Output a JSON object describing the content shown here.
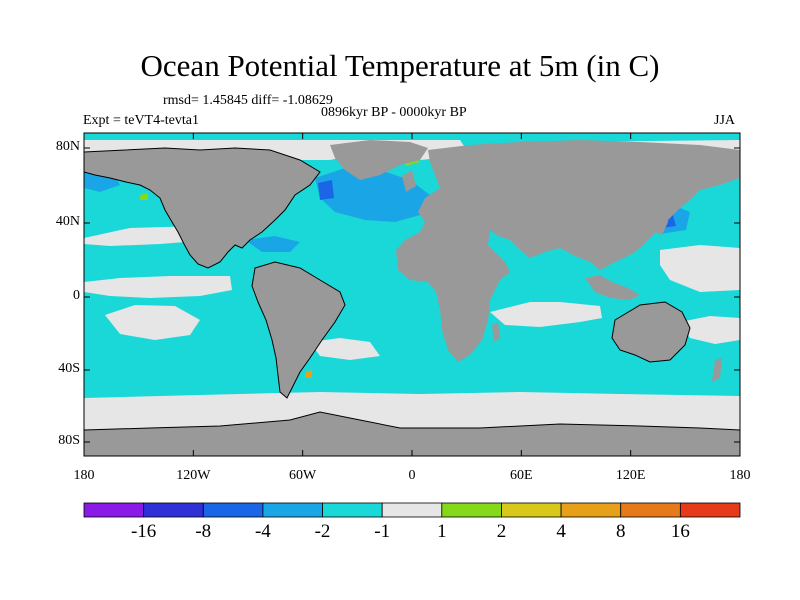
{
  "title": "Ocean Potential Temperature at 5m (in C)",
  "stats": "rmsd= 1.45845 diff= -1.08629",
  "period": "0896kyr BP - 0000kyr BP",
  "experiment": "Expt = teVT4-tevta1",
  "season": "JJA",
  "map": {
    "lat_ticks": [
      "80N",
      "40N",
      "0",
      "40S",
      "80S"
    ],
    "lon_ticks": [
      "180",
      "120W",
      "60W",
      "0",
      "60E",
      "120E",
      "180"
    ],
    "land_color": "#999999",
    "ocean_base_color": "#1ad8d8",
    "near_zero_color": "#e6e6e6"
  },
  "colorbar": {
    "colors": [
      "#8a1ae6",
      "#3030d8",
      "#1a66e6",
      "#1aa6e6",
      "#1ad8d8",
      "#e6e6e6",
      "#86d81a",
      "#d8c81a",
      "#e6a01a",
      "#e67a1a",
      "#e63a1a"
    ],
    "labels": [
      "-16",
      "-8",
      "-4",
      "-2",
      "-1",
      "1",
      "2",
      "4",
      "8",
      "16"
    ]
  }
}
